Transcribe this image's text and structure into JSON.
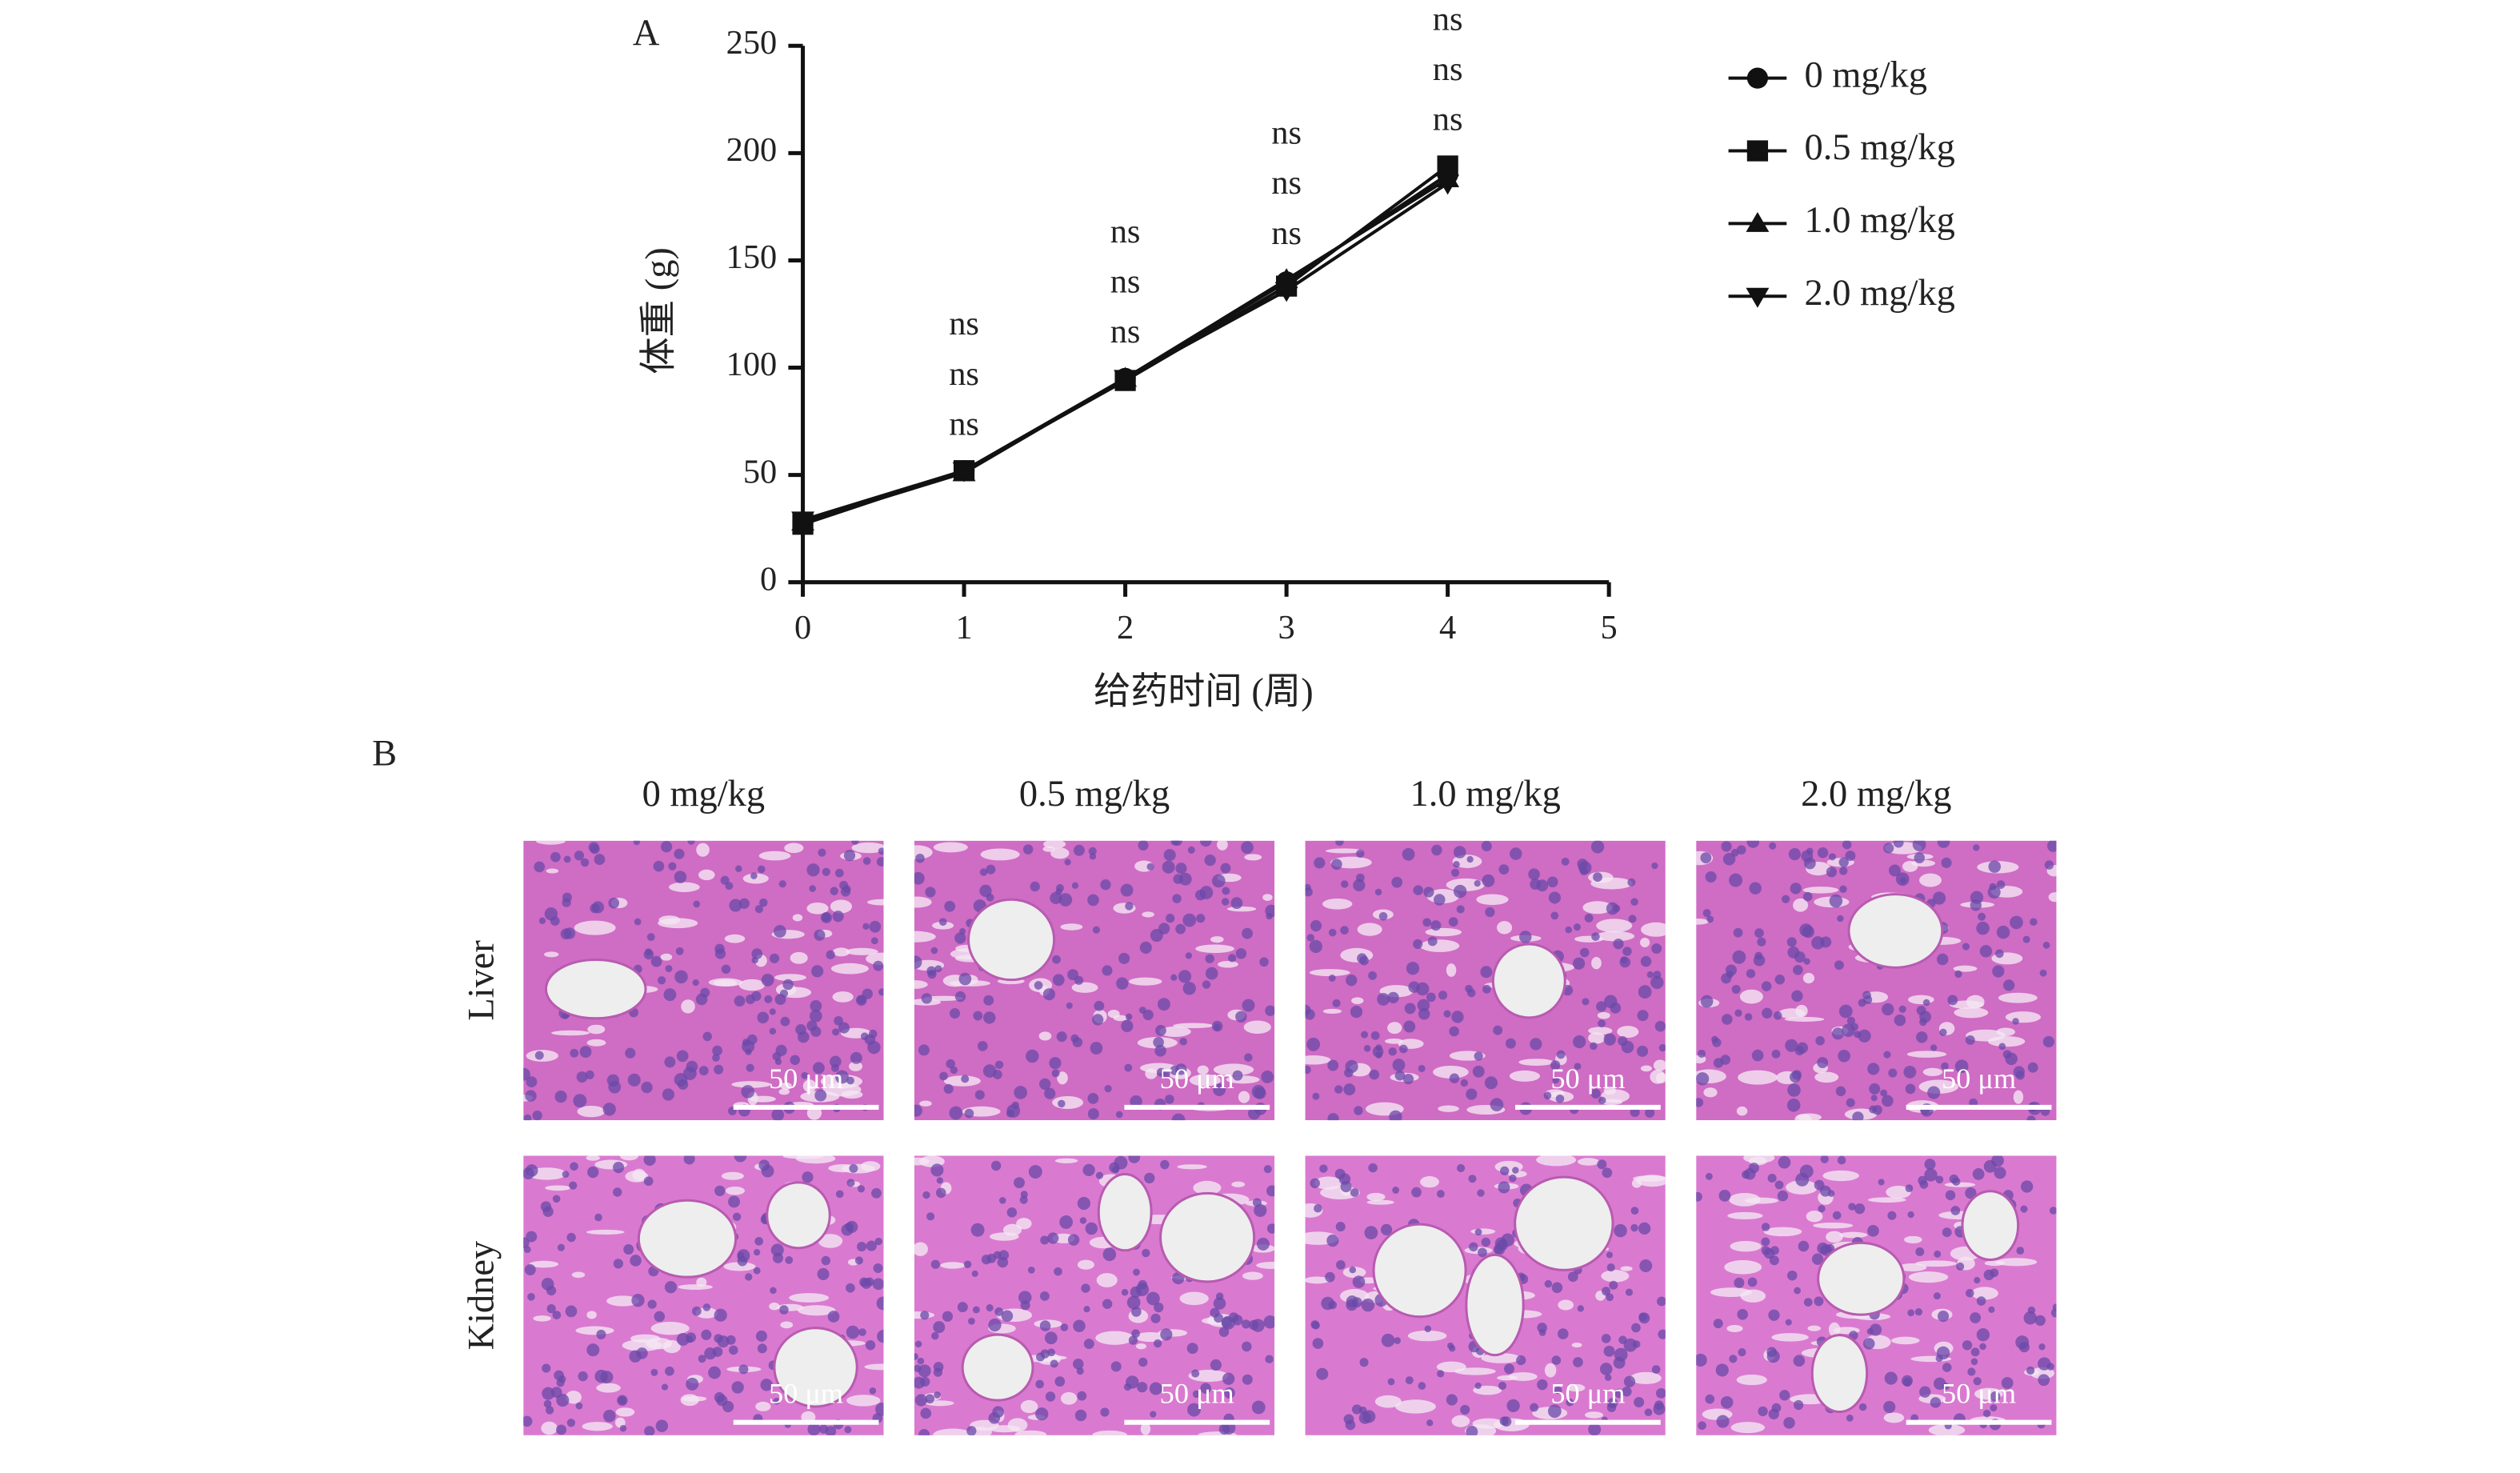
{
  "panel_labels": [
    "A",
    "B"
  ],
  "chart_data": {
    "type": "line",
    "xlabel": "给药时间 (周)",
    "ylabel": "体重 (g)",
    "x": [
      0,
      1,
      2,
      3,
      4
    ],
    "series": [
      {
        "name": "0 mg/kg",
        "color": "#111111",
        "marker": "circle",
        "values": [
          28,
          52,
          95,
          140,
          190
        ]
      },
      {
        "name": "0.5 mg/kg",
        "color": "#111111",
        "marker": "square",
        "values": [
          27,
          52,
          94,
          138,
          194
        ]
      },
      {
        "name": "1.0 mg/kg",
        "color": "#111111",
        "marker": "triangle-up",
        "values": [
          28,
          51,
          95,
          141,
          188
        ]
      },
      {
        "name": "2.0 mg/kg",
        "color": "#111111",
        "marker": "triangle-down",
        "values": [
          29,
          52,
          95,
          136,
          186
        ]
      }
    ],
    "xlim": [
      0,
      5
    ],
    "xticks": [
      0,
      1,
      2,
      3,
      4,
      5
    ],
    "ylim": [
      0,
      250
    ],
    "yticks": [
      0,
      50,
      100,
      150,
      200,
      250
    ],
    "legend": "right",
    "annotations": [
      {
        "x": 1,
        "labels": [
          "ns",
          "ns",
          "ns"
        ]
      },
      {
        "x": 2,
        "labels": [
          "ns",
          "ns",
          "ns"
        ]
      },
      {
        "x": 3,
        "labels": [
          "ns",
          "ns",
          "ns"
        ]
      },
      {
        "x": 4,
        "labels": [
          "ns",
          "ns",
          "ns"
        ]
      }
    ]
  },
  "histology": {
    "columns": [
      "0 mg/kg",
      "0.5 mg/kg",
      "1.0 mg/kg",
      "2.0 mg/kg"
    ],
    "rows": [
      "Liver",
      "Kidney"
    ],
    "scale_bar": "50 μm"
  }
}
